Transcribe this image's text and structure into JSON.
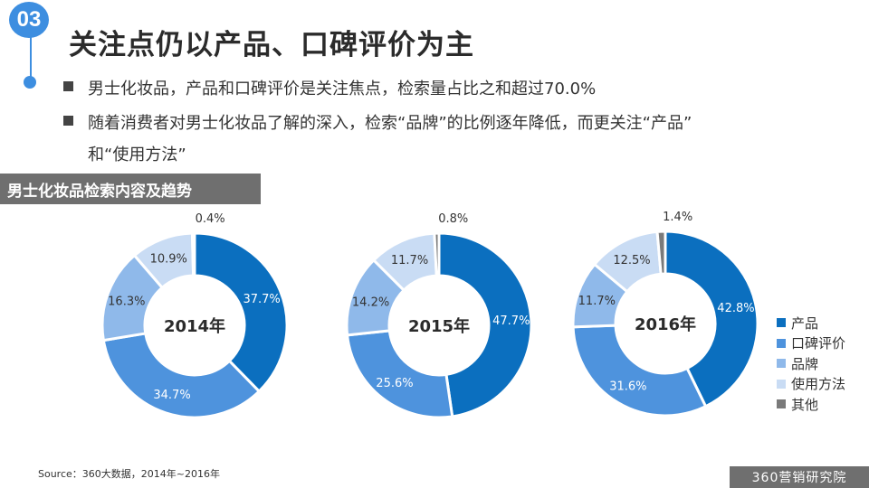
{
  "header": {
    "badge": "03",
    "title": "关注点仍以产品、口碑评价为主"
  },
  "bullets": [
    "男士化妆品，产品和口碑评价是关注焦点，检索量占比之和超过70.0%",
    "随着消费者对男士化妆品了解的深入，检索“品牌”的比例逐年降低，而更关注“产品”",
    "和“使用方法”"
  ],
  "chart_header": "男士化妆品检索内容及趋势",
  "colors": {
    "产品": "#0b6fbf",
    "口碑评价": "#4e93dd",
    "品牌": "#8fb9ea",
    "使用方法": "#c9dcf4",
    "其他": "#7a7a7a"
  },
  "chart_data": [
    {
      "type": "pie",
      "center_label": "2014年",
      "categories": [
        "产品",
        "口碑评价",
        "品牌",
        "使用方法",
        "其他"
      ],
      "values": [
        37.7,
        34.7,
        16.3,
        10.9,
        0.4
      ],
      "labels": [
        "37.7%",
        "34.7%",
        "16.3%",
        "10.9%",
        "0.4%"
      ]
    },
    {
      "type": "pie",
      "center_label": "2015年",
      "categories": [
        "产品",
        "口碑评价",
        "品牌",
        "使用方法",
        "其他"
      ],
      "values": [
        47.7,
        25.6,
        14.2,
        11.7,
        0.8
      ],
      "labels": [
        "47.7%",
        "25.6%",
        "14.2%",
        "11.7%",
        "0.8%"
      ]
    },
    {
      "type": "pie",
      "center_label": "2016年",
      "categories": [
        "产品",
        "口碑评价",
        "品牌",
        "使用方法",
        "其他"
      ],
      "values": [
        42.8,
        31.6,
        11.7,
        12.5,
        1.4
      ],
      "labels": [
        "42.8%",
        "31.6%",
        "11.7%",
        "12.5%",
        "1.4%"
      ]
    }
  ],
  "legend": [
    "产品",
    "口碑评价",
    "品牌",
    "使用方法",
    "其他"
  ],
  "footer": {
    "source": "Source：360大数据，2014年~2016年",
    "brand": "360营销研究院"
  }
}
